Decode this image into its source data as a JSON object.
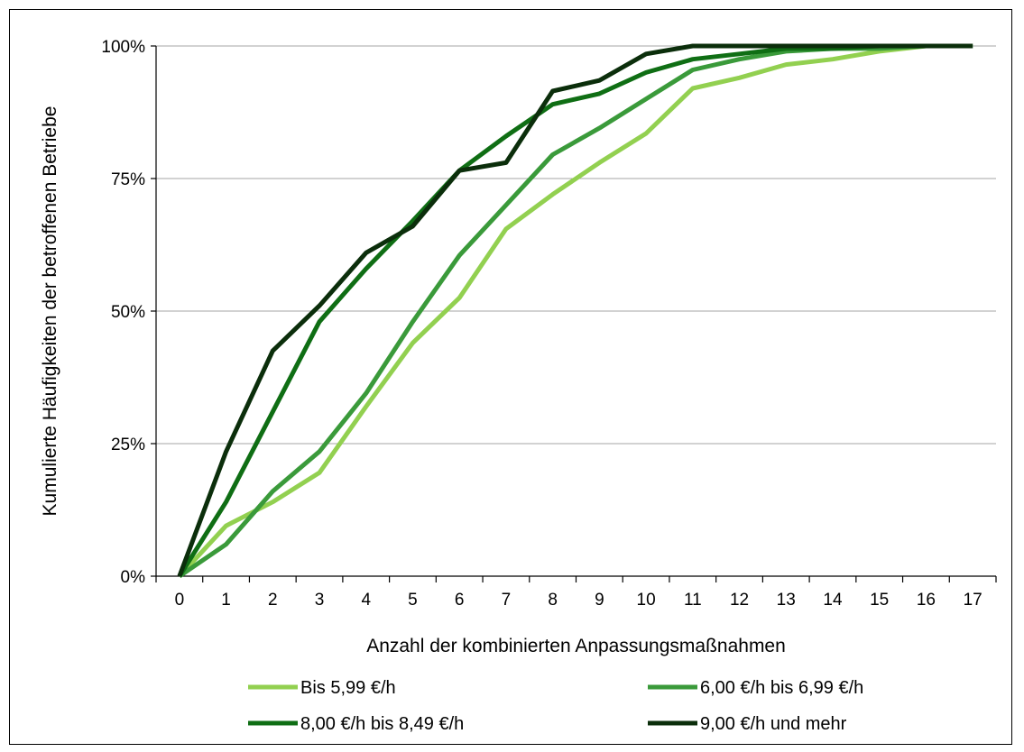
{
  "chart_data": {
    "type": "line",
    "title": "",
    "xlabel": "Anzahl der kombinierten Anpassungsmaßnahmen",
    "ylabel": "Kumulierte Häufigkeiten der betroffenen Betriebe",
    "x": [
      0,
      1,
      2,
      3,
      4,
      5,
      6,
      7,
      8,
      9,
      10,
      11,
      12,
      13,
      14,
      15,
      16,
      17
    ],
    "x_tick_labels": [
      "0",
      "1",
      "2",
      "3",
      "4",
      "5",
      "6",
      "7",
      "8",
      "9",
      "10",
      "11",
      "12",
      "13",
      "14",
      "15",
      "16",
      "17"
    ],
    "y_tick_labels": [
      "0%",
      "25%",
      "50%",
      "75%",
      "100%"
    ],
    "ylim": [
      0,
      100
    ],
    "y_ticks": [
      0,
      25,
      50,
      75,
      100
    ],
    "grid": "horizontal",
    "legend_position": "bottom",
    "series": [
      {
        "name": "Bis 5,99 €/h",
        "color": "#92D050",
        "values": [
          0,
          9.5,
          14,
          19.5,
          32,
          44,
          52.5,
          65.5,
          72,
          78,
          83.5,
          92,
          94,
          96.5,
          97.5,
          99,
          100,
          100
        ]
      },
      {
        "name": "6,00 €/h bis 6,99 €/h",
        "color": "#3A9A3A",
        "values": [
          0,
          6,
          16,
          23.5,
          34.5,
          48,
          60.5,
          70,
          79.5,
          84.5,
          90,
          95.5,
          97.5,
          99,
          99.5,
          99.5,
          100,
          100
        ]
      },
      {
        "name": "8,00 €/h bis 8,49 €/h",
        "color": "#0F6E14",
        "values": [
          0,
          14,
          31,
          48,
          58,
          67,
          76.5,
          83,
          89,
          91,
          95,
          97.5,
          98.5,
          99.5,
          99.5,
          100,
          100,
          100
        ]
      },
      {
        "name": "9,00 €/h und mehr",
        "color": "#0B2E0B",
        "values": [
          0,
          23.5,
          42.5,
          51,
          61,
          66,
          76.5,
          78,
          91.5,
          93.5,
          98.5,
          100,
          100,
          100,
          100,
          100,
          100,
          100
        ]
      }
    ]
  }
}
